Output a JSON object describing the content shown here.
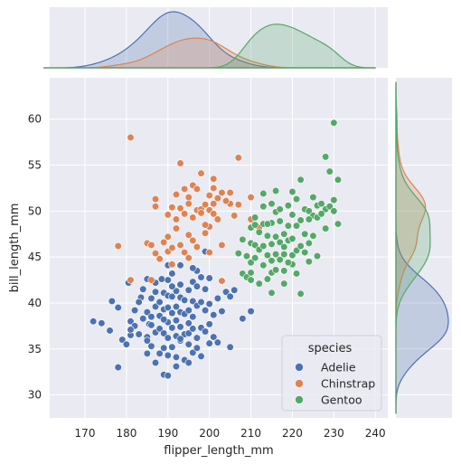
{
  "chart_data": {
    "type": "scatter",
    "xlabel": "flipper_length_mm",
    "ylabel": "bill_length_mm",
    "xlim": [
      161.5,
      243
    ],
    "ylim": [
      27.5,
      64.5
    ],
    "xticks": [
      "170",
      "180",
      "190",
      "200",
      "210",
      "220",
      "230",
      "240"
    ],
    "yticks": [
      "30",
      "35",
      "40",
      "45",
      "50",
      "55",
      "60"
    ],
    "grid": true,
    "marginals": "kde (top: flipper_length_mm, right: bill_length_mm)",
    "legend": {
      "title": "species",
      "placement": "lower-right",
      "entries": [
        "Adelie",
        "Chinstrap",
        "Gentoo"
      ]
    },
    "colors": {
      "Adelie": "#4c72b0",
      "Chinstrap": "#dd8452",
      "Gentoo": "#55a868",
      "panel_bg": "#eaeaf2",
      "grid": "#ffffff"
    },
    "series": [
      {
        "name": "Adelie",
        "points": [
          [
            172,
            38
          ],
          [
            174,
            37.8
          ],
          [
            176,
            37
          ],
          [
            176.5,
            40.2
          ],
          [
            178,
            33
          ],
          [
            178,
            39.5
          ],
          [
            179,
            36
          ],
          [
            180,
            35.5
          ],
          [
            180.5,
            42.2
          ],
          [
            181,
            38
          ],
          [
            181,
            36.5
          ],
          [
            182,
            37.5
          ],
          [
            182,
            39.2
          ],
          [
            183,
            36.6
          ],
          [
            183.5,
            40.6
          ],
          [
            184,
            38.3
          ],
          [
            184,
            41.5
          ],
          [
            185,
            36.3
          ],
          [
            185,
            34.5
          ],
          [
            185,
            39
          ],
          [
            185.5,
            37.7
          ],
          [
            186,
            35.3
          ],
          [
            186,
            38.5
          ],
          [
            186,
            40.5
          ],
          [
            187,
            33.5
          ],
          [
            187,
            36.8
          ],
          [
            187,
            39.6
          ],
          [
            187,
            42.2
          ],
          [
            188,
            34.5
          ],
          [
            188,
            37.2
          ],
          [
            188,
            40.1
          ],
          [
            188,
            38.6
          ],
          [
            188.5,
            42.6
          ],
          [
            189,
            35.1
          ],
          [
            189,
            36.7
          ],
          [
            189,
            39.3
          ],
          [
            189,
            41.1
          ],
          [
            189,
            32.2
          ],
          [
            190,
            34.3
          ],
          [
            190,
            36.2
          ],
          [
            190,
            37.9
          ],
          [
            190,
            39.5
          ],
          [
            190,
            40.8
          ],
          [
            190,
            42.5
          ],
          [
            190,
            44.1
          ],
          [
            191,
            35.2
          ],
          [
            191,
            37.3
          ],
          [
            191,
            38.9
          ],
          [
            191,
            40.7
          ],
          [
            191,
            43.2
          ],
          [
            192,
            34.1
          ],
          [
            192,
            36.4
          ],
          [
            192,
            38.1
          ],
          [
            192,
            39.6
          ],
          [
            192,
            41.3
          ],
          [
            193,
            35.9
          ],
          [
            193,
            37.4
          ],
          [
            193,
            39
          ],
          [
            193,
            40.6
          ],
          [
            193,
            42
          ],
          [
            193,
            44.1
          ],
          [
            194,
            33.8
          ],
          [
            194,
            36.6
          ],
          [
            194,
            38.8
          ],
          [
            194,
            40.3
          ],
          [
            195,
            35.5
          ],
          [
            195,
            37.8
          ],
          [
            195,
            39.2
          ],
          [
            195,
            41.4
          ],
          [
            195,
            36.7
          ],
          [
            196,
            34.6
          ],
          [
            196,
            38.5
          ],
          [
            196,
            40.2
          ],
          [
            196,
            42.3
          ],
          [
            196,
            37.2
          ],
          [
            197,
            36.2
          ],
          [
            197,
            39.7
          ],
          [
            197,
            41.8
          ],
          [
            197,
            35.1
          ],
          [
            198,
            37.3
          ],
          [
            198,
            40.1
          ],
          [
            198,
            42.8
          ],
          [
            198,
            34.2
          ],
          [
            199,
            36.9
          ],
          [
            199,
            39.2
          ],
          [
            199,
            41.5
          ],
          [
            200,
            37.7
          ],
          [
            200,
            39.9
          ],
          [
            200,
            42.7
          ],
          [
            201,
            38.7
          ],
          [
            201,
            36.3
          ],
          [
            202,
            40.5
          ],
          [
            203,
            39.1
          ],
          [
            204,
            41.2
          ],
          [
            205,
            40.7
          ],
          [
            206,
            41.4
          ],
          [
            208,
            38.3
          ],
          [
            210,
            39.1
          ],
          [
            202,
            35.7
          ],
          [
            205,
            35.2
          ],
          [
            183,
            40.1
          ],
          [
            185,
            42.6
          ],
          [
            181,
            37.1
          ],
          [
            186,
            37.6
          ],
          [
            193,
            36.1
          ],
          [
            195,
            33.5
          ],
          [
            197,
            43.5
          ],
          [
            199,
            45.6
          ],
          [
            200,
            35.6
          ],
          [
            185,
            35.9
          ],
          [
            189,
            38.2
          ],
          [
            192,
            33.1
          ],
          [
            191,
            41.8
          ],
          [
            196,
            43.8
          ],
          [
            187,
            41.2
          ],
          [
            190,
            32.1
          ]
        ]
      },
      {
        "name": "Chinstrap",
        "points": [
          [
            178,
            46.2
          ],
          [
            181,
            58
          ],
          [
            181,
            42.5
          ],
          [
            185,
            46.5
          ],
          [
            186,
            46.3
          ],
          [
            187,
            50.5
          ],
          [
            187,
            51.3
          ],
          [
            187,
            45.4
          ],
          [
            188,
            44.8
          ],
          [
            189,
            46.6
          ],
          [
            190,
            49.6
          ],
          [
            190,
            45.6
          ],
          [
            190,
            47.2
          ],
          [
            191,
            44.2
          ],
          [
            191,
            46
          ],
          [
            192,
            49.1
          ],
          [
            192,
            51.8
          ],
          [
            192,
            48.1
          ],
          [
            193,
            50.3
          ],
          [
            193,
            46.3
          ],
          [
            194,
            52.4
          ],
          [
            194,
            45.5
          ],
          [
            194,
            49.7
          ],
          [
            195,
            47.4
          ],
          [
            195,
            50.8
          ],
          [
            195,
            51.5
          ],
          [
            196,
            52.8
          ],
          [
            196,
            46.8
          ],
          [
            196,
            49.3
          ],
          [
            197,
            50.1
          ],
          [
            197,
            52.4
          ],
          [
            197,
            46.1
          ],
          [
            198,
            50.2
          ],
          [
            198,
            54.1
          ],
          [
            198,
            49.8
          ],
          [
            199,
            47.6
          ],
          [
            199,
            50.7
          ],
          [
            200,
            51.7
          ],
          [
            200,
            48.3
          ],
          [
            200,
            45.5
          ],
          [
            200,
            50.1
          ],
          [
            201,
            49.7
          ],
          [
            201,
            53.5
          ],
          [
            201,
            50.8
          ],
          [
            202,
            49.1
          ],
          [
            202,
            51.4
          ],
          [
            203,
            52
          ],
          [
            203,
            46.3
          ],
          [
            205,
            50.8
          ],
          [
            205,
            52
          ],
          [
            206,
            49.5
          ],
          [
            207,
            50.7
          ],
          [
            207,
            55.8
          ],
          [
            210,
            49.1
          ],
          [
            212,
            48.2
          ],
          [
            203,
            42.4
          ],
          [
            201,
            52.5
          ],
          [
            193,
            55.2
          ],
          [
            195,
            44.9
          ],
          [
            191,
            50.4
          ],
          [
            199,
            48.5
          ],
          [
            204,
            51.1
          ],
          [
            210,
            51.5
          ],
          [
            186,
            42.5
          ]
        ]
      },
      {
        "name": "Gentoo",
        "points": [
          [
            207,
            45.4
          ],
          [
            208,
            43.2
          ],
          [
            208,
            46.9
          ],
          [
            209,
            42.8
          ],
          [
            209,
            45.1
          ],
          [
            210,
            44.4
          ],
          [
            210,
            48.2
          ],
          [
            210,
            46.5
          ],
          [
            210,
            43.3
          ],
          [
            211,
            46.3
          ],
          [
            211,
            44.9
          ],
          [
            211,
            49.3
          ],
          [
            212,
            45.8
          ],
          [
            212,
            42.1
          ],
          [
            212,
            47.7
          ],
          [
            213,
            44.1
          ],
          [
            213,
            46.2
          ],
          [
            213,
            48.6
          ],
          [
            213,
            50.5
          ],
          [
            214,
            42.6
          ],
          [
            214,
            45.2
          ],
          [
            214,
            47.3
          ],
          [
            215,
            44.6
          ],
          [
            215,
            46.4
          ],
          [
            215,
            48.7
          ],
          [
            215,
            50.8
          ],
          [
            215,
            43.3
          ],
          [
            216,
            45.3
          ],
          [
            216,
            47.2
          ],
          [
            216,
            49.9
          ],
          [
            216,
            43.6
          ],
          [
            217,
            44.7
          ],
          [
            217,
            46.6
          ],
          [
            217,
            50.2
          ],
          [
            218,
            43.5
          ],
          [
            218,
            46.1
          ],
          [
            218,
            47.5
          ],
          [
            218,
            45.3
          ],
          [
            219,
            46.8
          ],
          [
            219,
            48.4
          ],
          [
            219,
            50.6
          ],
          [
            220,
            45.2
          ],
          [
            220,
            47
          ],
          [
            220,
            49.6
          ],
          [
            220,
            52.1
          ],
          [
            220,
            44.2
          ],
          [
            221,
            45.7
          ],
          [
            221,
            48.4
          ],
          [
            221,
            51.3
          ],
          [
            222,
            46.2
          ],
          [
            222,
            49
          ],
          [
            222,
            53.4
          ],
          [
            222,
            41
          ],
          [
            223,
            45.5
          ],
          [
            223,
            47.5
          ],
          [
            223,
            50.2
          ],
          [
            224,
            44.5
          ],
          [
            224,
            46.5
          ],
          [
            224,
            50
          ],
          [
            225,
            47.3
          ],
          [
            225,
            49.5
          ],
          [
            225,
            51.5
          ],
          [
            226,
            45.1
          ],
          [
            226,
            49.3
          ],
          [
            226,
            50.6
          ],
          [
            227,
            50.8
          ],
          [
            228,
            48.1
          ],
          [
            228,
            50.2
          ],
          [
            228,
            55.9
          ],
          [
            229,
            50.5
          ],
          [
            229,
            54.3
          ],
          [
            230,
            59.6
          ],
          [
            230,
            50
          ],
          [
            230,
            51.2
          ],
          [
            231,
            53.4
          ],
          [
            231,
            48.6
          ],
          [
            218,
            42.1
          ],
          [
            215,
            41.1
          ],
          [
            210,
            42.5
          ],
          [
            214,
            48.6
          ],
          [
            216,
            52.2
          ],
          [
            219,
            44.4
          ],
          [
            221,
            43.2
          ],
          [
            227,
            49.7
          ],
          [
            224,
            49.1
          ],
          [
            213,
            51.9
          ],
          [
            211,
            48.5
          ],
          [
            217,
            48.9
          ]
        ]
      }
    ]
  }
}
